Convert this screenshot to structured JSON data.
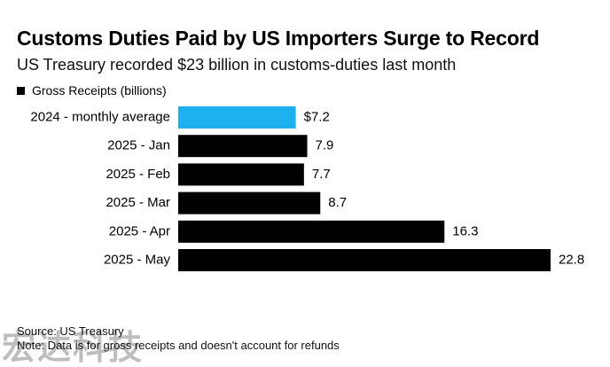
{
  "title": "Customs Duties Paid by US Importers Surge to Record",
  "subtitle": "US Treasury recorded $23 billion in customs-duties last month",
  "legend": {
    "label": "Gross Receipts (billions)"
  },
  "footer": {
    "source": "Source: US Treasury",
    "note": "Note: Data is for gross receipts and doesn't account for refunds"
  },
  "watermark": "宏达科技",
  "colors": {
    "highlight": "#1fb0f0",
    "bar": "#000000"
  },
  "chart_data": {
    "type": "bar",
    "orientation": "horizontal",
    "title": "Customs Duties Paid by US Importers Surge to Record",
    "subtitle": "US Treasury recorded $23 billion in customs-duties last month",
    "xlabel": "",
    "ylabel": "",
    "xlim": [
      0,
      22.8
    ],
    "grid": false,
    "legend_position": "top-left",
    "categories": [
      "2024 - monthly average",
      "2025 - Jan",
      "2025 - Feb",
      "2025 - Mar",
      "2025 - Apr",
      "2025 - May"
    ],
    "series": [
      {
        "name": "Gross Receipts (billions)",
        "values": [
          7.2,
          7.9,
          7.7,
          8.7,
          16.3,
          22.8
        ],
        "labels": [
          "$7.2",
          "7.9",
          "7.7",
          "8.7",
          "16.3",
          "22.8"
        ],
        "colors": [
          "#1fb0f0",
          "#000000",
          "#000000",
          "#000000",
          "#000000",
          "#000000"
        ]
      }
    ]
  }
}
